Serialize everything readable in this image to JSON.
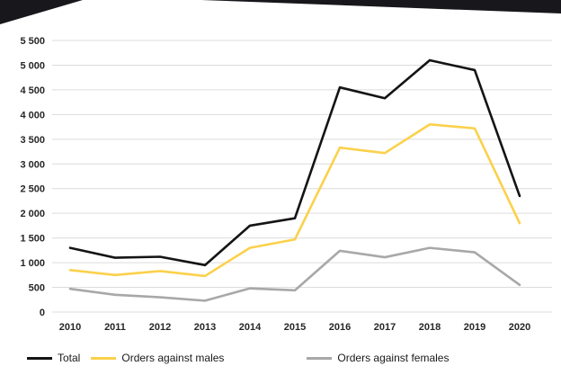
{
  "chart_data": {
    "type": "line",
    "title": "",
    "xlabel": "",
    "ylabel": "",
    "categories": [
      "2010",
      "2011",
      "2012",
      "2013",
      "2014",
      "2015",
      "2016",
      "2017",
      "2018",
      "2019",
      "2020"
    ],
    "series": [
      {
        "name": "Total",
        "color": "#141414",
        "values": [
          1300,
          1100,
          1120,
          950,
          1750,
          1900,
          4550,
          4330,
          5100,
          4900,
          2350
        ]
      },
      {
        "name": "Orders against males",
        "color": "#fbd14b",
        "values": [
          850,
          750,
          830,
          730,
          1300,
          1470,
          3330,
          3220,
          3800,
          3720,
          1800
        ]
      },
      {
        "name": "Orders against females",
        "color": "#a8a8a8",
        "values": [
          470,
          350,
          300,
          230,
          480,
          440,
          1240,
          1110,
          1300,
          1210,
          550
        ]
      }
    ],
    "ylim": [
      0,
      5500
    ],
    "ytick_values": [
      0,
      500,
      1000,
      1500,
      2000,
      2500,
      3000,
      3500,
      4000,
      4500,
      5000,
      5500
    ],
    "ytick_labels": [
      "0",
      "500",
      "1 000",
      "1 500",
      "2 000",
      "2 500",
      "3 000",
      "3 500",
      "4 000",
      "4 500",
      "5 000",
      "5 500"
    ],
    "grid": true,
    "gridline_color": "#dcdcdc",
    "legend_position": "bottom"
  }
}
